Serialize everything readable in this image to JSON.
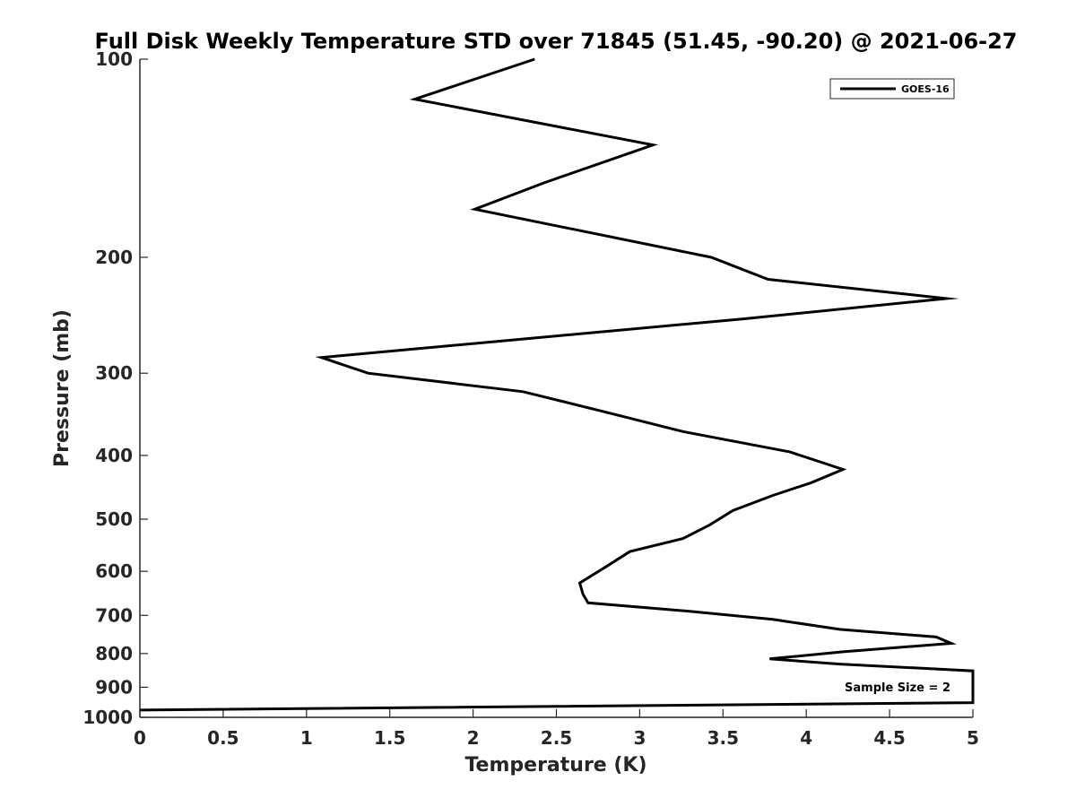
{
  "chart_data": {
    "type": "line",
    "title": "Full Disk Weekly Temperature STD over 71845 (51.45, -90.20) @ 2021-06-27",
    "xlabel": "Temperature (K)",
    "ylabel": "Pressure (mb)",
    "xlim": [
      0,
      5
    ],
    "ylim": [
      100,
      1000
    ],
    "yscale": "log",
    "y_reversed": true,
    "xticks": [
      0,
      0.5,
      1,
      1.5,
      2,
      2.5,
      3,
      3.5,
      4,
      4.5,
      5
    ],
    "xtick_labels": [
      "0",
      "0.5",
      "1",
      "1.5",
      "2",
      "2.5",
      "3",
      "3.5",
      "4",
      "4.5",
      "5"
    ],
    "yticks": [
      100,
      200,
      300,
      400,
      500,
      600,
      700,
      800,
      900,
      1000
    ],
    "ytick_labels": [
      "100",
      "200",
      "300",
      "400",
      "500",
      "600",
      "700",
      "800",
      "900",
      "1000"
    ],
    "grid": false,
    "legend_position": "top-right",
    "annotation": "Sample Size = 2",
    "series": [
      {
        "name": "GOES-16",
        "color": "#000000",
        "points": [
          {
            "x": 2.37,
            "y": 100
          },
          {
            "x": 1.65,
            "y": 115
          },
          {
            "x": 3.08,
            "y": 135
          },
          {
            "x": 2.43,
            "y": 154
          },
          {
            "x": 2.01,
            "y": 169
          },
          {
            "x": 3.43,
            "y": 200
          },
          {
            "x": 3.77,
            "y": 216
          },
          {
            "x": 4.84,
            "y": 231
          },
          {
            "x": 3.63,
            "y": 248
          },
          {
            "x": 1.09,
            "y": 284
          },
          {
            "x": 1.37,
            "y": 300
          },
          {
            "x": 2.3,
            "y": 320
          },
          {
            "x": 2.8,
            "y": 344
          },
          {
            "x": 3.26,
            "y": 368
          },
          {
            "x": 3.9,
            "y": 395
          },
          {
            "x": 4.22,
            "y": 420
          },
          {
            "x": 4.03,
            "y": 440
          },
          {
            "x": 3.8,
            "y": 460
          },
          {
            "x": 3.56,
            "y": 485
          },
          {
            "x": 3.42,
            "y": 510
          },
          {
            "x": 3.26,
            "y": 535
          },
          {
            "x": 2.94,
            "y": 560
          },
          {
            "x": 2.8,
            "y": 590
          },
          {
            "x": 2.64,
            "y": 625
          },
          {
            "x": 2.66,
            "y": 650
          },
          {
            "x": 2.69,
            "y": 670
          },
          {
            "x": 3.3,
            "y": 690
          },
          {
            "x": 3.8,
            "y": 710
          },
          {
            "x": 4.2,
            "y": 735
          },
          {
            "x": 4.78,
            "y": 755
          },
          {
            "x": 4.87,
            "y": 772
          },
          {
            "x": 4.22,
            "y": 795
          },
          {
            "x": 3.78,
            "y": 815
          },
          {
            "x": 4.2,
            "y": 830
          },
          {
            "x": 5.0,
            "y": 850
          },
          {
            "x": 5.0,
            "y": 950
          },
          {
            "x": 0.0,
            "y": 975
          }
        ]
      }
    ]
  }
}
